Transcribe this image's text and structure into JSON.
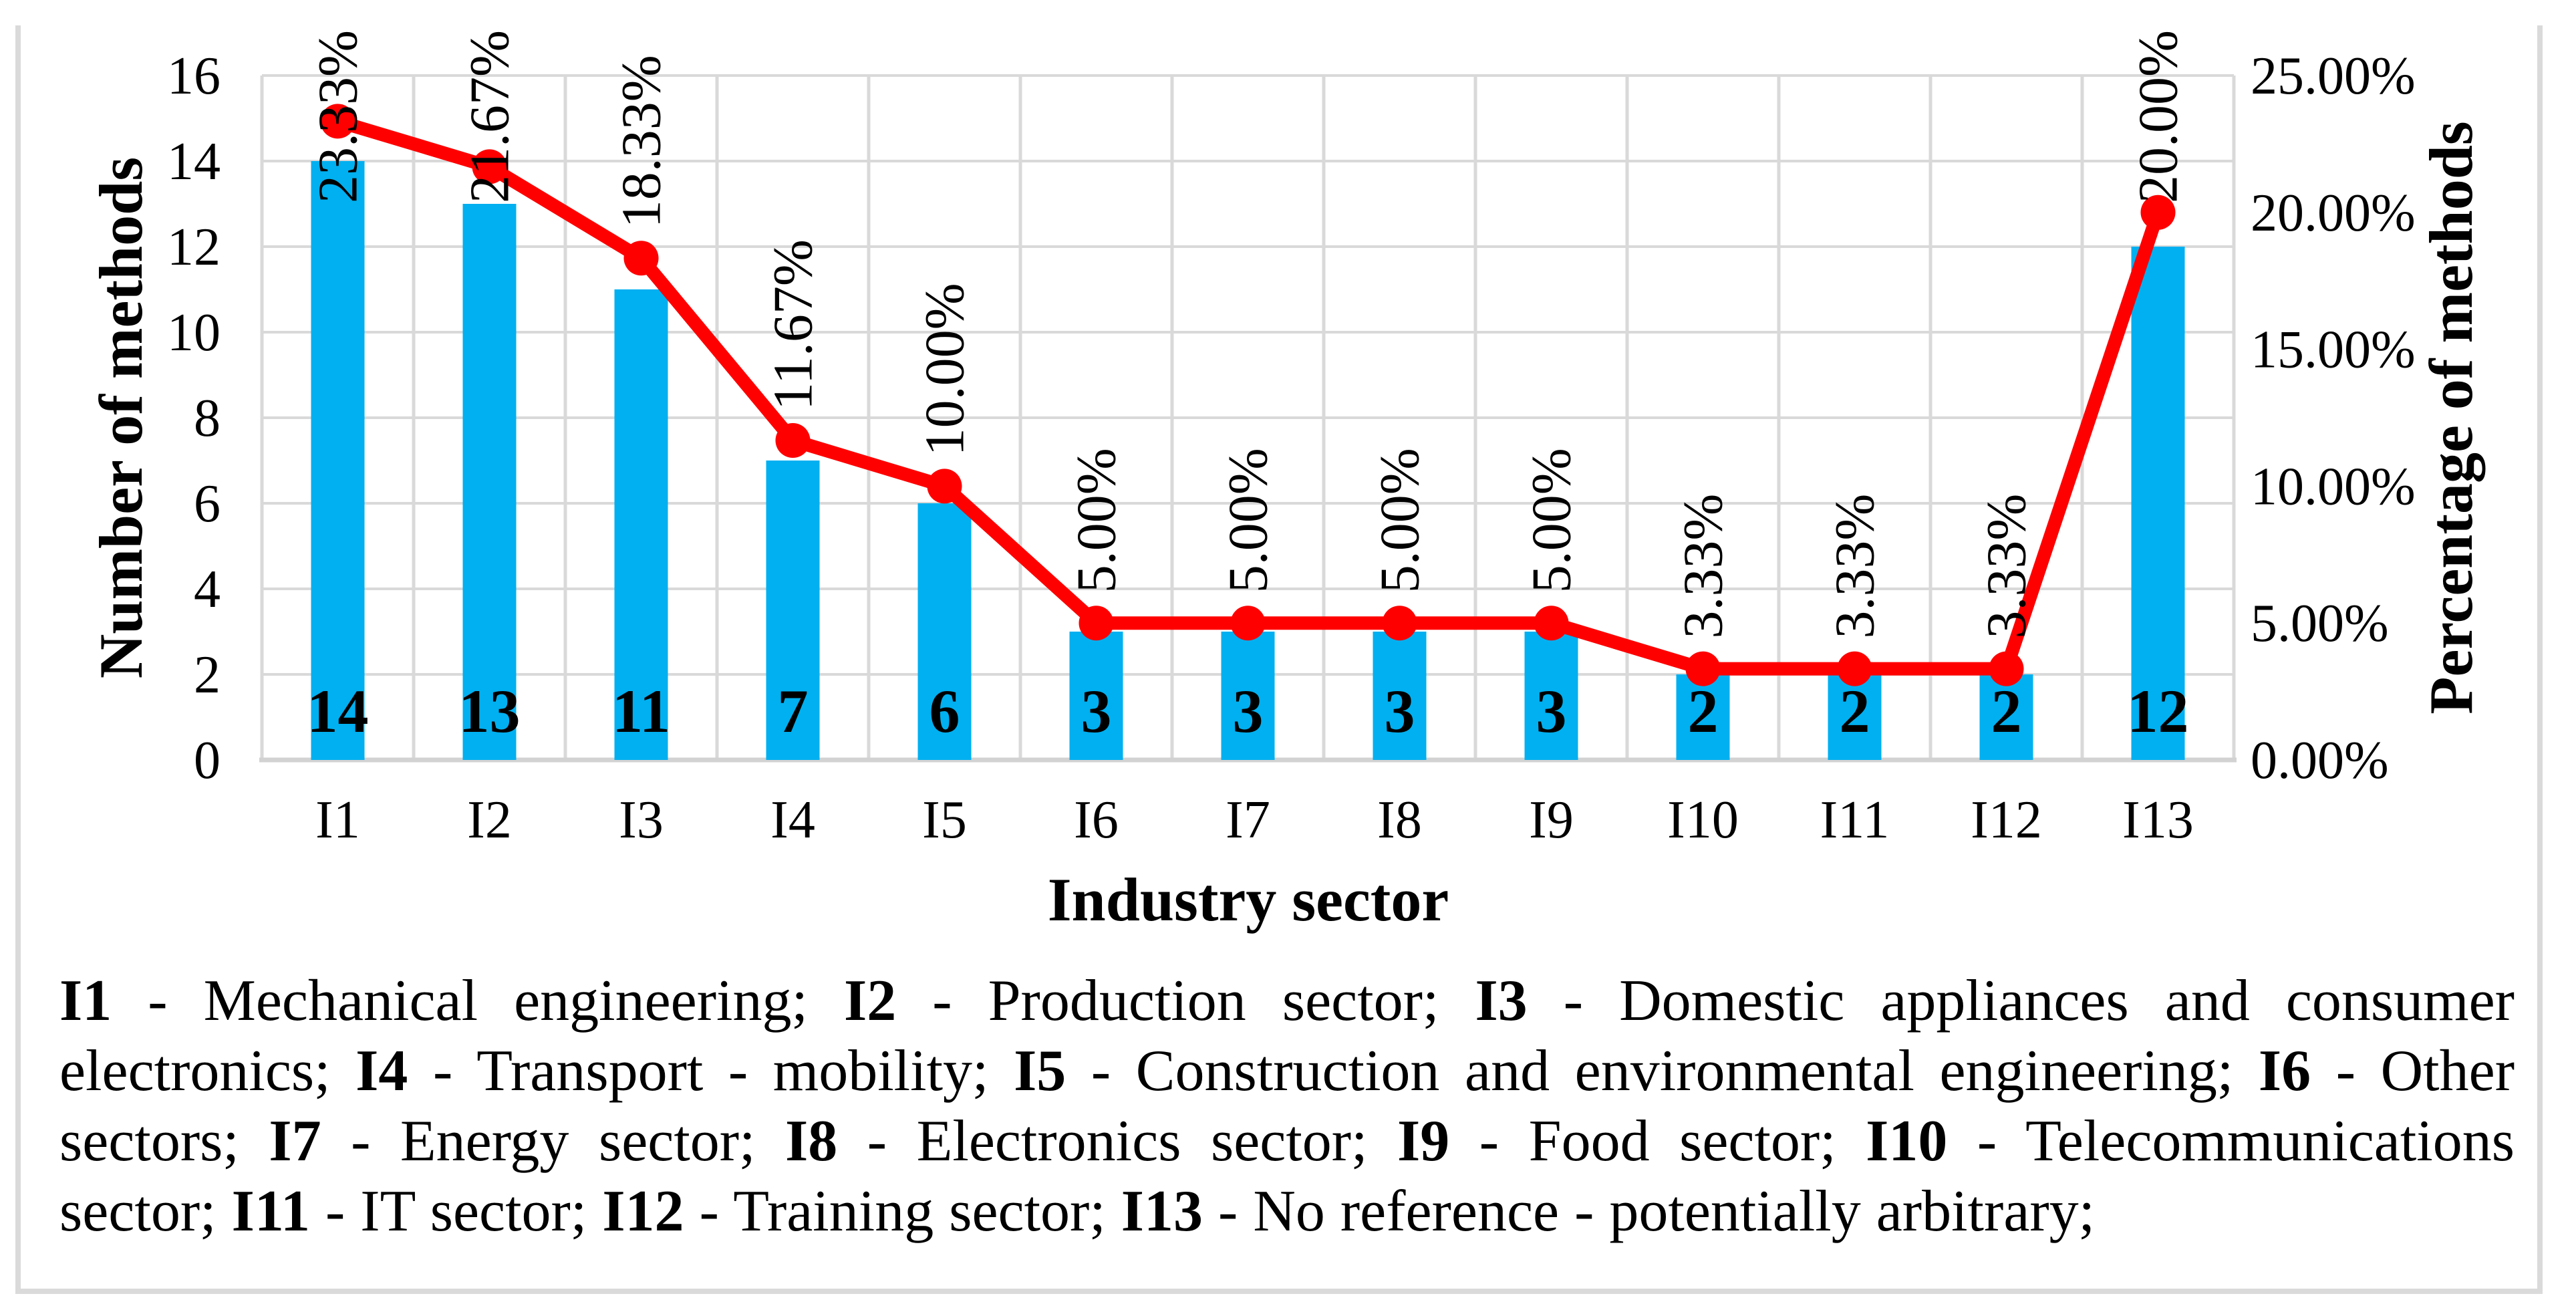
{
  "chart_data": {
    "type": "bar",
    "subtype": "bar-line-combo",
    "categories": [
      "I1",
      "I2",
      "I3",
      "I4",
      "I5",
      "I6",
      "I7",
      "I8",
      "I9",
      "I10",
      "I11",
      "I12",
      "I13"
    ],
    "series": [
      {
        "name": "Number of methods",
        "type": "bar",
        "values": [
          14,
          13,
          11,
          7,
          6,
          3,
          3,
          3,
          3,
          2,
          2,
          2,
          12
        ],
        "data_labels": [
          "14",
          "13",
          "11",
          "7",
          "6",
          "3",
          "3",
          "3",
          "3",
          "2",
          "2",
          "2",
          "12"
        ],
        "color": "#00B0F0"
      },
      {
        "name": "Percentage of methods",
        "type": "line",
        "values": [
          23.33,
          21.67,
          18.33,
          11.67,
          10.0,
          5.0,
          5.0,
          5.0,
          5.0,
          3.33,
          3.33,
          3.33,
          20.0
        ],
        "data_labels": [
          "23.33%",
          "21.67%",
          "18.33%",
          "11.67%",
          "10.00%",
          "5.00%",
          "5.00%",
          "5.00%",
          "5.00%",
          "3.33%",
          "3.33%",
          "3.33%",
          "20.00%"
        ],
        "color": "#FF0000"
      }
    ],
    "xlabel": "Industry sector",
    "ylabel": "Number of methods",
    "y2label": "Percentage of methods",
    "ylim": [
      0,
      16
    ],
    "y_ticks": [
      "0",
      "2",
      "4",
      "6",
      "8",
      "10",
      "12",
      "14",
      "16"
    ],
    "y2lim": [
      0,
      25
    ],
    "y2_ticks": [
      "0.00%",
      "5.00%",
      "10.00%",
      "15.00%",
      "20.00%",
      "25.00%"
    ],
    "grid": "on",
    "legend_position": "none"
  },
  "colors": {
    "bar": "#00B0F0",
    "line": "#FF0000",
    "grid": "#D9D9D9",
    "axis_line": "#D2D2D2",
    "frame_border": "#DADADA",
    "text": "#000000"
  },
  "caption": {
    "lines": [
      {
        "justify": true,
        "segments": [
          {
            "t": "I1",
            "b": true
          },
          {
            "t": " - Mechanical engineering; ",
            "b": false
          },
          {
            "t": "I2",
            "b": true
          },
          {
            "t": " - Production sector; ",
            "b": false
          },
          {
            "t": "I3",
            "b": true
          },
          {
            "t": " - Domestic appliances and consumer",
            "b": false
          }
        ]
      },
      {
        "justify": true,
        "segments": [
          {
            "t": "electronics; ",
            "b": false
          },
          {
            "t": "I4",
            "b": true
          },
          {
            "t": " - Transport - mobility; ",
            "b": false
          },
          {
            "t": "I5",
            "b": true
          },
          {
            "t": " - Construction and environmental engineering; ",
            "b": false
          },
          {
            "t": "I6",
            "b": true
          },
          {
            "t": " - Other",
            "b": false
          }
        ]
      },
      {
        "justify": true,
        "segments": [
          {
            "t": "sectors; ",
            "b": false
          },
          {
            "t": "I7",
            "b": true
          },
          {
            "t": " - Energy sector; ",
            "b": false
          },
          {
            "t": "I8",
            "b": true
          },
          {
            "t": " - Electronics sector; ",
            "b": false
          },
          {
            "t": "I9",
            "b": true
          },
          {
            "t": " - Food sector; ",
            "b": false
          },
          {
            "t": "I10",
            "b": true
          },
          {
            "t": " - Telecommunications",
            "b": false
          }
        ]
      },
      {
        "justify": false,
        "segments": [
          {
            "t": "sector; ",
            "b": false
          },
          {
            "t": "I11",
            "b": true
          },
          {
            "t": " - IT sector; ",
            "b": false
          },
          {
            "t": "I12",
            "b": true
          },
          {
            "t": " - Training sector; ",
            "b": false
          },
          {
            "t": "I13",
            "b": true
          },
          {
            "t": " - No reference - potentially arbitrary;",
            "b": false
          }
        ]
      }
    ]
  }
}
